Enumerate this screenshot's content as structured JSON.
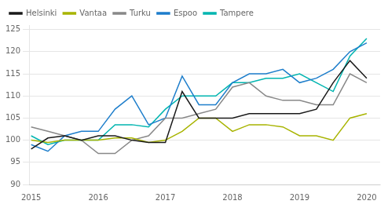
{
  "chart_data": {
    "type": "line",
    "x": [
      2015.0,
      2015.25,
      2015.5,
      2015.75,
      2016.0,
      2016.25,
      2016.5,
      2016.75,
      2017.0,
      2017.25,
      2017.5,
      2017.75,
      2018.0,
      2018.25,
      2018.5,
      2018.75,
      2019.0,
      2019.25,
      2019.5,
      2019.75,
      2020.0
    ],
    "series": [
      {
        "name": "Helsinki",
        "color": "#1a1a1a",
        "values": [
          98,
          100.5,
          101,
          100,
          101,
          101,
          100,
          99.5,
          99.5,
          111,
          105,
          105,
          105,
          106,
          106,
          106,
          106,
          107,
          113,
          118,
          114
        ]
      },
      {
        "name": "Vantaa",
        "color": "#a8b400",
        "values": [
          100,
          99.5,
          100,
          100,
          100,
          100.5,
          100.5,
          99.5,
          100,
          102,
          105,
          105,
          102,
          103.5,
          103.5,
          103,
          101,
          101,
          100,
          105,
          106
        ]
      },
      {
        "name": "Turku",
        "color": "#888888",
        "values": [
          103,
          102,
          101,
          100,
          97,
          97,
          100,
          101,
          105,
          105,
          106,
          107,
          112,
          113,
          110,
          109,
          109,
          108,
          108,
          115,
          113
        ]
      },
      {
        "name": "Espoo",
        "color": "#1e7ecb",
        "values": [
          99,
          97.5,
          101,
          102,
          102,
          107,
          110,
          103.5,
          105,
          114.5,
          108,
          108,
          113,
          115,
          115,
          116,
          113,
          114,
          116,
          120,
          122
        ]
      },
      {
        "name": "Tampere",
        "color": "#00b5b0",
        "values": [
          101,
          99,
          100,
          100,
          100,
          103.5,
          103.5,
          103,
          107,
          110,
          110,
          110,
          113,
          113,
          114,
          114,
          115,
          113,
          111,
          119,
          123
        ]
      }
    ],
    "xlim": [
      2014.97,
      2020.2
    ],
    "xticks": [
      2015,
      2016,
      2017,
      2018,
      2019,
      2020
    ],
    "ylim": [
      90,
      126
    ],
    "yticks": [
      90,
      95,
      100,
      105,
      110,
      115,
      120,
      125
    ],
    "grid": "y",
    "legend": "upper left"
  }
}
